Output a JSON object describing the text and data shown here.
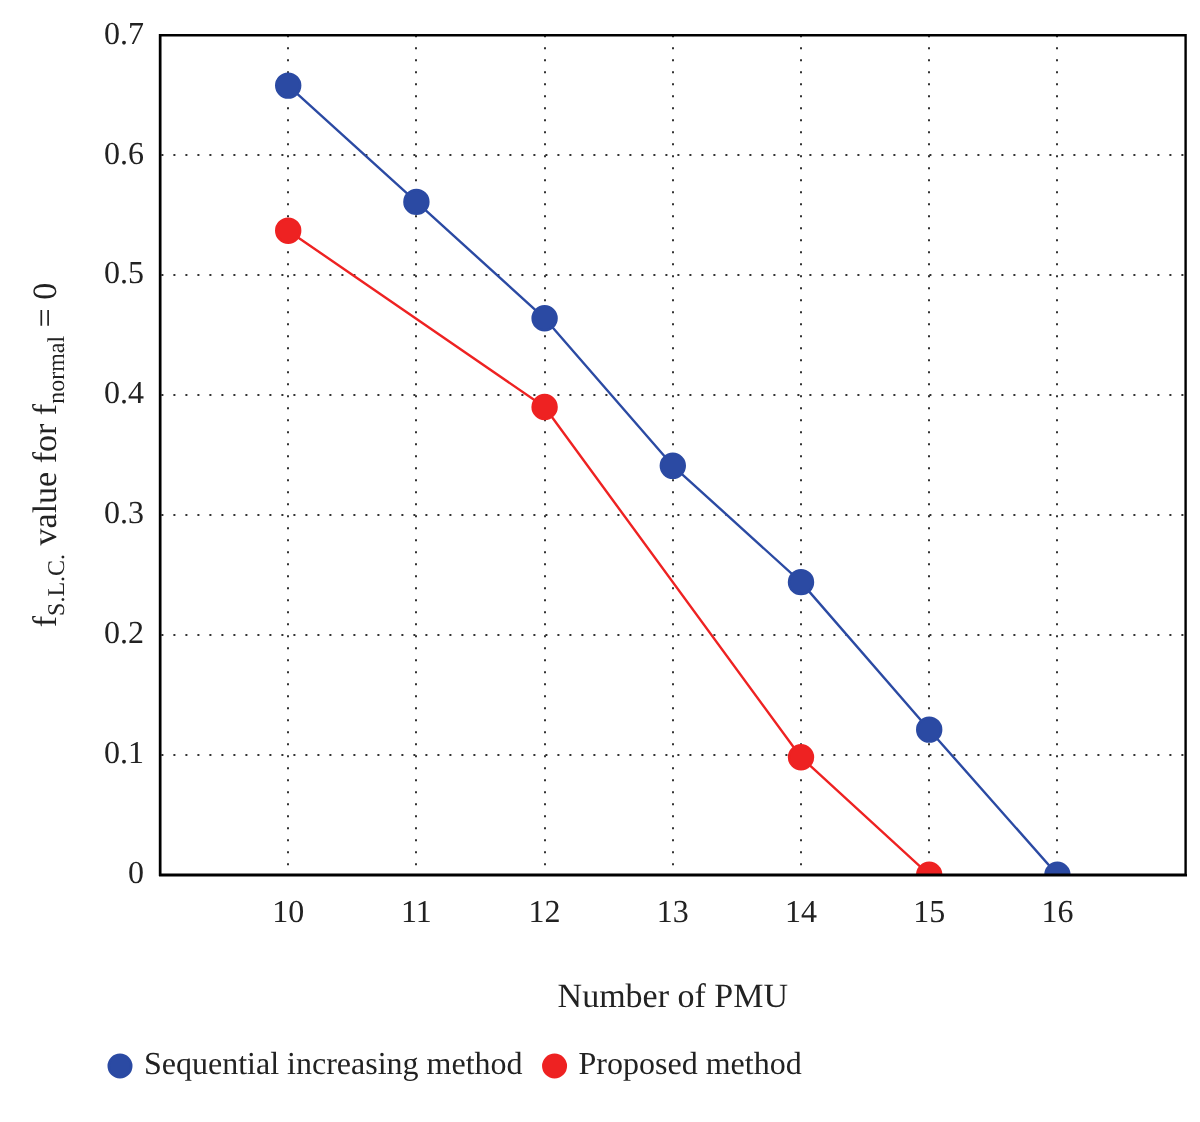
{
  "chart_data": {
    "type": "line",
    "xlabel": "Number of PMU",
    "ylabel": "f$_{S.L.C.}$ value for f$_{normal}$ = 0",
    "xlim": [
      9,
      17
    ],
    "xticks": [
      10,
      11,
      12,
      13,
      14,
      15,
      16
    ],
    "ylim": [
      0,
      0.7
    ],
    "yticks": [
      0,
      0.1,
      0.2,
      0.3,
      0.4,
      0.5,
      0.6,
      0.7
    ],
    "grid": true,
    "legend": "bottom",
    "marker": "circle",
    "line_style": "solid",
    "series": [
      {
        "name": "Sequential increasing method",
        "color": "#2b4aa3",
        "x": [
          10,
          11,
          12,
          13,
          14,
          15,
          16
        ],
        "values": [
          0.658,
          0.561,
          0.464,
          0.341,
          0.244,
          0.121,
          0
        ]
      },
      {
        "name": "Proposed method",
        "color": "#ee2222",
        "x": [
          10,
          12,
          14,
          15
        ],
        "values": [
          0.537,
          0.39,
          0.098,
          0
        ]
      }
    ]
  }
}
